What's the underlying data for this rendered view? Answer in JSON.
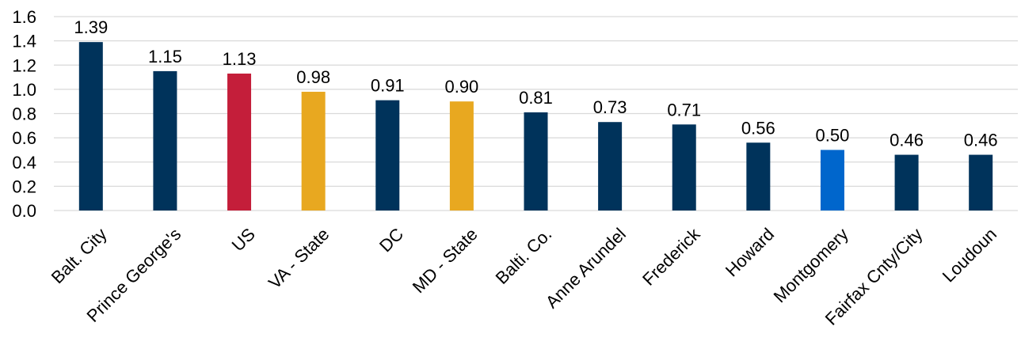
{
  "chart_data": {
    "type": "bar",
    "categories": [
      "Balt. City",
      "Prince George's",
      "US",
      "VA - State",
      "DC",
      "MD - State",
      "Balti. Co.",
      "Anne Arundel",
      "Frederick",
      "Howard",
      "Montgomery",
      "Fairfax Cnty/City",
      "Loudoun"
    ],
    "values": [
      1.39,
      1.15,
      1.13,
      0.98,
      0.91,
      0.9,
      0.81,
      0.73,
      0.71,
      0.56,
      0.5,
      0.46,
      0.46
    ],
    "data_labels": [
      "1.39",
      "1.15",
      "1.13",
      "0.98",
      "0.91",
      "0.90",
      "0.81",
      "0.73",
      "0.71",
      "0.56",
      "0.50",
      "0.46",
      "0.46"
    ],
    "bar_colors": [
      "#00335B",
      "#00335B",
      "#C41E3A",
      "#E8A820",
      "#00335B",
      "#E8A820",
      "#00335B",
      "#00335B",
      "#00335B",
      "#00335B",
      "#0066CC",
      "#00335B",
      "#00335B"
    ],
    "yticks": [
      0.0,
      0.2,
      0.4,
      0.6,
      0.8,
      1.0,
      1.2,
      1.4,
      1.6
    ],
    "ytick_labels": [
      "0.0",
      "0.2",
      "0.4",
      "0.6",
      "0.8",
      "1.0",
      "1.2",
      "1.4",
      "1.6"
    ],
    "ylim": [
      0,
      1.6
    ],
    "grid": true,
    "gridline_color": "#D9D9D9",
    "legend": "none"
  }
}
